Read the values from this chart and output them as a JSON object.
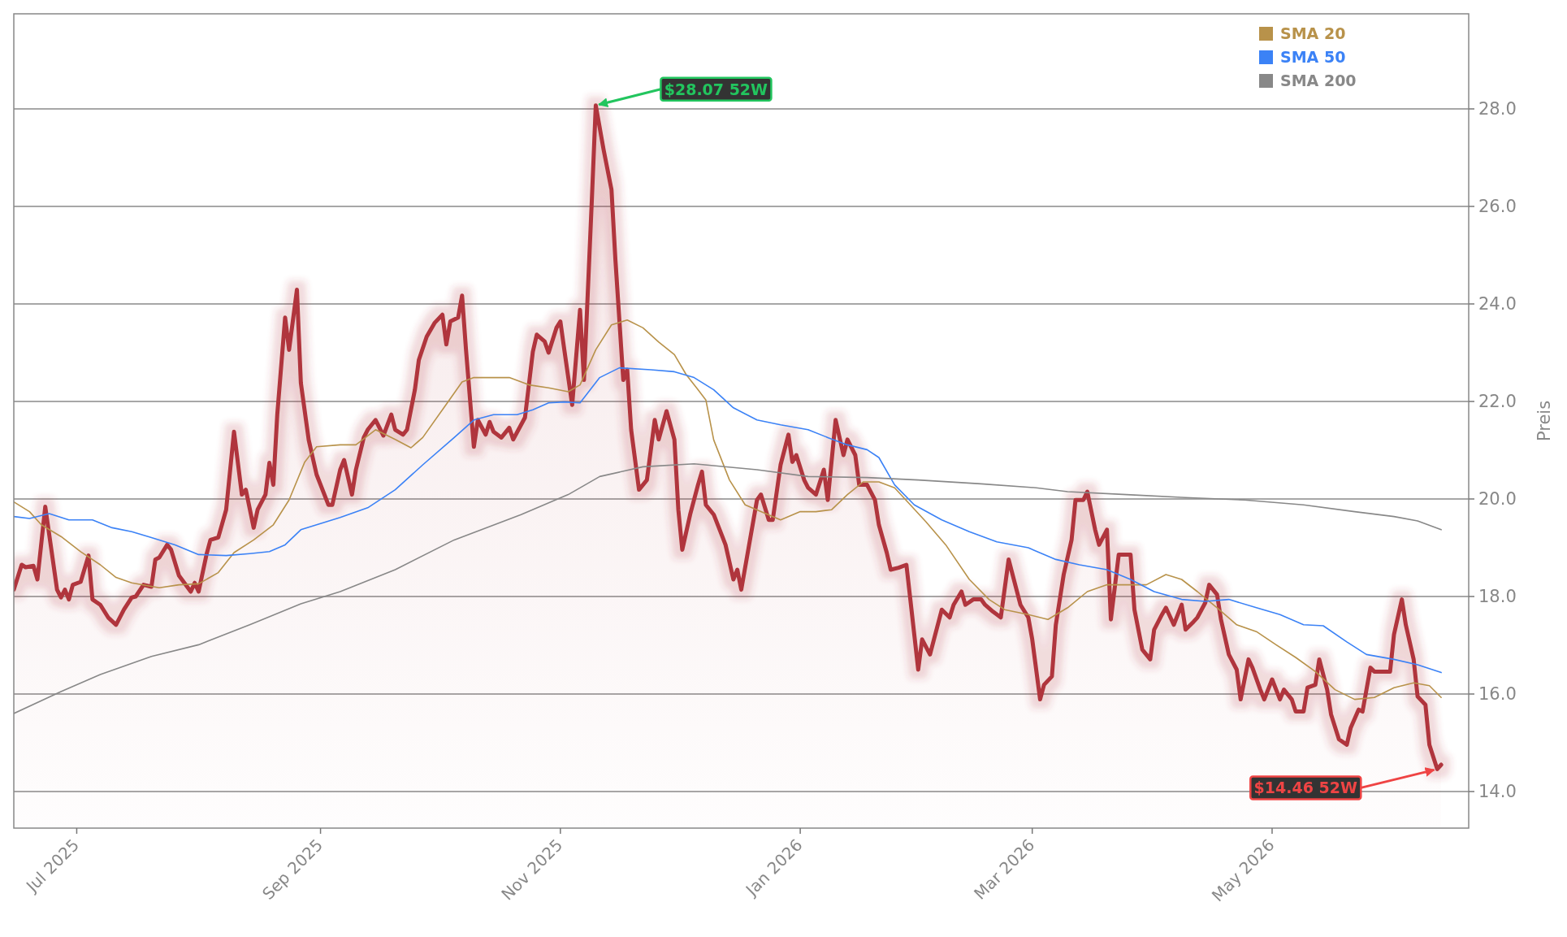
{
  "chart_data": {
    "type": "line",
    "ylabel": "Preis",
    "xlim": [
      "2025-06-15",
      "2026-06-20"
    ],
    "ylim": [
      13.25,
      29.95
    ],
    "xticks": [
      {
        "value": "2025-07-01",
        "label": "Jul 2025"
      },
      {
        "value": "2025-09-01",
        "label": "Sep 2025"
      },
      {
        "value": "2025-11-01",
        "label": "Nov 2025"
      },
      {
        "value": "2026-01-01",
        "label": "Jan 2026"
      },
      {
        "value": "2026-03-01",
        "label": "Mar 2026"
      },
      {
        "value": "2026-05-01",
        "label": "May 2026"
      }
    ],
    "yticks": [
      {
        "value": 14,
        "label": "14.0"
      },
      {
        "value": 16,
        "label": "16.0"
      },
      {
        "value": 18,
        "label": "18.0"
      },
      {
        "value": 20,
        "label": "20.0"
      },
      {
        "value": 22,
        "label": "22.0"
      },
      {
        "value": 24,
        "label": "24.0"
      },
      {
        "value": 26,
        "label": "26.0"
      },
      {
        "value": 28,
        "label": "28.0"
      }
    ],
    "grid": "y",
    "legend": "top right",
    "annotations": [
      {
        "text": "$28.07 52W",
        "x": "2025-11-10",
        "y": 28.07
      },
      {
        "text": "$14.46 52W",
        "x": "2026-06-12",
        "y": 14.46
      }
    ],
    "series": [
      {
        "type": "area",
        "color": "#b0353d",
        "x": [
          "2025-06-15",
          "2025-06-17",
          "2025-06-18",
          "2025-06-20",
          "2025-06-21",
          "2025-06-23",
          "2025-06-26",
          "2025-06-27",
          "2025-06-28",
          "2025-06-29",
          "2025-06-30",
          "2025-07-02",
          "2025-07-04",
          "2025-07-05",
          "2025-07-07",
          "2025-07-09",
          "2025-07-11",
          "2025-07-13",
          "2025-07-15",
          "2025-07-16",
          "2025-07-18",
          "2025-07-20",
          "2025-07-21",
          "2025-07-22",
          "2025-07-24",
          "2025-07-25",
          "2025-07-27",
          "2025-07-30",
          "2025-07-31",
          "2025-08-01",
          "2025-08-03",
          "2025-08-04",
          "2025-08-06",
          "2025-08-08",
          "2025-08-10",
          "2025-08-12",
          "2025-08-13",
          "2025-08-15",
          "2025-08-16",
          "2025-08-18",
          "2025-08-19",
          "2025-08-20",
          "2025-08-21",
          "2025-08-23",
          "2025-08-24",
          "2025-08-26",
          "2025-08-27",
          "2025-08-29",
          "2025-08-31",
          "2025-09-03",
          "2025-09-04",
          "2025-09-06",
          "2025-09-07",
          "2025-09-09",
          "2025-09-10",
          "2025-09-12",
          "2025-09-13",
          "2025-09-15",
          "2025-09-17",
          "2025-09-19",
          "2025-09-20",
          "2025-09-22",
          "2025-09-23",
          "2025-09-25",
          "2025-09-26",
          "2025-09-28",
          "2025-09-30",
          "2025-10-02",
          "2025-10-03",
          "2025-10-04",
          "2025-10-06",
          "2025-10-07",
          "2025-10-08",
          "2025-10-10",
          "2025-10-11",
          "2025-10-13",
          "2025-10-14",
          "2025-10-15",
          "2025-10-17",
          "2025-10-19",
          "2025-10-20",
          "2025-10-22",
          "2025-10-23",
          "2025-10-25",
          "2025-10-26",
          "2025-10-28",
          "2025-10-29",
          "2025-10-31",
          "2025-11-01",
          "2025-11-02",
          "2025-11-04",
          "2025-11-06",
          "2025-11-07",
          "2025-11-09",
          "2025-11-10",
          "2025-11-12",
          "2025-11-14",
          "2025-11-15",
          "2025-11-17",
          "2025-11-18",
          "2025-11-19",
          "2025-11-21",
          "2025-11-23",
          "2025-11-25",
          "2025-11-26",
          "2025-11-28",
          "2025-11-30",
          "2025-12-01",
          "2025-12-02",
          "2025-12-04",
          "2025-12-06",
          "2025-12-07",
          "2025-12-08",
          "2025-12-10",
          "2025-12-12",
          "2025-12-13",
          "2025-12-15",
          "2025-12-16",
          "2025-12-17",
          "2025-12-19",
          "2025-12-21",
          "2025-12-22",
          "2025-12-24",
          "2025-12-25",
          "2025-12-27",
          "2025-12-29",
          "2025-12-30",
          "2025-12-31",
          "2026-01-02",
          "2026-01-03",
          "2026-01-05",
          "2026-01-07",
          "2026-01-08",
          "2026-01-10",
          "2026-01-12",
          "2026-01-13",
          "2026-01-15",
          "2026-01-16",
          "2026-01-18",
          "2026-01-20",
          "2026-01-21",
          "2026-01-23",
          "2026-01-24",
          "2026-01-26",
          "2026-01-28",
          "2026-01-29",
          "2026-01-31",
          "2026-02-01",
          "2026-02-03",
          "2026-02-04",
          "2026-02-06",
          "2026-02-08",
          "2026-02-09",
          "2026-02-11",
          "2026-02-12",
          "2026-02-14",
          "2026-02-16",
          "2026-02-17",
          "2026-02-19",
          "2026-02-21",
          "2026-02-23",
          "2026-02-25",
          "2026-02-26",
          "2026-02-28",
          "2026-03-01",
          "2026-03-03",
          "2026-03-04",
          "2026-03-06",
          "2026-03-07",
          "2026-03-09",
          "2026-03-11",
          "2026-03-12",
          "2026-03-14",
          "2026-03-15",
          "2026-03-17",
          "2026-03-18",
          "2026-03-20",
          "2026-03-21",
          "2026-03-23",
          "2026-03-24",
          "2026-03-26",
          "2026-03-27",
          "2026-03-29",
          "2026-03-31",
          "2026-04-01",
          "2026-04-03",
          "2026-04-04",
          "2026-04-06",
          "2026-04-08",
          "2026-04-09",
          "2026-04-11",
          "2026-04-12",
          "2026-04-14",
          "2026-04-15",
          "2026-04-17",
          "2026-04-18",
          "2026-04-20",
          "2026-04-22",
          "2026-04-23",
          "2026-04-25",
          "2026-04-26",
          "2026-04-28",
          "2026-04-29",
          "2026-05-01",
          "2026-05-03",
          "2026-05-04",
          "2026-05-06",
          "2026-05-07",
          "2026-05-09",
          "2026-05-10",
          "2026-05-12",
          "2026-05-13",
          "2026-05-15",
          "2026-05-16",
          "2026-05-18",
          "2026-05-20",
          "2026-05-21",
          "2026-05-23",
          "2026-05-24",
          "2026-05-26",
          "2026-05-27",
          "2026-05-29",
          "2026-05-31",
          "2026-06-01",
          "2026-06-03",
          "2026-06-04",
          "2026-06-06",
          "2026-06-07",
          "2026-06-09",
          "2026-06-10",
          "2026-06-12",
          "2026-06-13"
        ],
        "values": [
          18.14,
          18.65,
          18.6,
          18.63,
          18.35,
          19.84,
          18.14,
          17.98,
          18.14,
          17.94,
          18.24,
          18.3,
          18.84,
          17.94,
          17.83,
          17.57,
          17.42,
          17.73,
          17.98,
          18.0,
          18.24,
          18.2,
          18.76,
          18.8,
          19.06,
          18.96,
          18.43,
          18.1,
          18.28,
          18.1,
          18.86,
          19.16,
          19.21,
          19.78,
          21.38,
          20.09,
          20.19,
          19.41,
          19.78,
          20.09,
          20.74,
          20.29,
          21.73,
          23.72,
          23.06,
          24.29,
          22.38,
          21.21,
          20.5,
          19.88,
          19.88,
          20.6,
          20.8,
          20.09,
          20.6,
          21.26,
          21.42,
          21.62,
          21.3,
          21.73,
          21.42,
          21.32,
          21.42,
          22.24,
          22.85,
          23.33,
          23.61,
          23.78,
          23.17,
          23.64,
          23.72,
          24.17,
          23.06,
          21.07,
          21.62,
          21.32,
          21.58,
          21.38,
          21.26,
          21.46,
          21.22,
          21.52,
          21.67,
          23.02,
          23.37,
          23.23,
          23.0,
          23.51,
          23.64,
          23.06,
          21.93,
          23.88,
          22.44,
          26.13,
          28.07,
          27.16,
          26.34,
          24.9,
          22.44,
          22.65,
          21.42,
          20.19,
          20.39,
          21.62,
          21.22,
          21.8,
          21.22,
          19.78,
          18.96,
          19.68,
          20.29,
          20.56,
          19.88,
          19.68,
          19.27,
          19.06,
          18.35,
          18.55,
          18.14,
          19.06,
          19.98,
          20.09,
          19.57,
          19.57,
          20.7,
          21.32,
          20.76,
          20.9,
          20.39,
          20.23,
          20.09,
          20.6,
          19.98,
          21.62,
          20.9,
          21.22,
          20.9,
          20.29,
          20.29,
          19.98,
          19.47,
          18.9,
          18.55,
          18.59,
          18.65,
          17.94,
          16.5,
          17.12,
          16.81,
          17.12,
          17.73,
          17.57,
          17.83,
          18.1,
          17.83,
          17.94,
          17.94,
          17.83,
          17.69,
          17.57,
          18.76,
          18.14,
          17.83,
          17.57,
          17.12,
          15.89,
          16.19,
          16.36,
          17.42,
          18.45,
          19.16,
          19.98,
          19.98,
          20.15,
          19.37,
          19.06,
          19.37,
          17.53,
          18.86,
          18.86,
          18.86,
          17.73,
          16.91,
          16.71,
          17.32,
          17.63,
          17.77,
          17.42,
          17.83,
          17.32,
          17.48,
          17.57,
          17.87,
          18.24,
          18.04,
          17.53,
          16.81,
          16.5,
          15.89,
          16.71,
          16.54,
          16.09,
          15.89,
          16.3,
          15.89,
          16.09,
          15.89,
          15.64,
          15.64,
          16.13,
          16.19,
          16.71,
          16.09,
          15.58,
          15.07,
          14.96,
          15.31,
          15.68,
          15.64,
          16.54,
          16.46,
          16.46,
          16.46,
          17.22,
          17.94,
          17.42,
          16.71,
          15.95,
          15.78,
          14.96,
          14.46,
          14.55
        ]
      },
      {
        "name": "SMA 20",
        "type": "line",
        "color": "#b8924a",
        "x": [
          "2025-06-15",
          "2025-06-19",
          "2025-06-22",
          "2025-06-27",
          "2025-07-02",
          "2025-07-07",
          "2025-07-11",
          "2025-07-15",
          "2025-07-22",
          "2025-07-27",
          "2025-08-01",
          "2025-08-06",
          "2025-08-10",
          "2025-08-15",
          "2025-08-20",
          "2025-08-24",
          "2025-08-28",
          "2025-08-31",
          "2025-09-06",
          "2025-09-10",
          "2025-09-15",
          "2025-09-20",
          "2025-09-24",
          "2025-09-27",
          "2025-10-02",
          "2025-10-07",
          "2025-10-10",
          "2025-10-15",
          "2025-10-19",
          "2025-10-24",
          "2025-10-29",
          "2025-11-03",
          "2025-11-06",
          "2025-11-10",
          "2025-11-14",
          "2025-11-18",
          "2025-11-22",
          "2025-11-26",
          "2025-11-30",
          "2025-12-03",
          "2025-12-06",
          "2025-12-08",
          "2025-12-10",
          "2025-12-14",
          "2025-12-18",
          "2025-12-22",
          "2025-12-27",
          "2026-01-01",
          "2026-01-05",
          "2026-01-09",
          "2026-01-13",
          "2026-01-17",
          "2026-01-21",
          "2026-01-25",
          "2026-01-29",
          "2026-02-02",
          "2026-02-07",
          "2026-02-13",
          "2026-02-18",
          "2026-02-22",
          "2026-02-28",
          "2026-03-05",
          "2026-03-10",
          "2026-03-15",
          "2026-03-20",
          "2026-03-25",
          "2026-03-30",
          "2026-04-04",
          "2026-04-08",
          "2026-04-12",
          "2026-04-17",
          "2026-04-22",
          "2026-04-27",
          "2026-05-02",
          "2026-05-07",
          "2026-05-12",
          "2026-05-17",
          "2026-05-22",
          "2026-05-27",
          "2026-06-01",
          "2026-06-06",
          "2026-06-10",
          "2026-06-13"
        ],
        "values": [
          19.94,
          19.74,
          19.47,
          19.23,
          18.92,
          18.65,
          18.39,
          18.28,
          18.18,
          18.24,
          18.26,
          18.49,
          18.9,
          19.16,
          19.47,
          19.98,
          20.76,
          21.07,
          21.11,
          21.11,
          21.42,
          21.22,
          21.05,
          21.26,
          21.83,
          22.4,
          22.49,
          22.49,
          22.49,
          22.34,
          22.28,
          22.2,
          22.34,
          23.06,
          23.57,
          23.67,
          23.51,
          23.22,
          22.96,
          22.55,
          22.24,
          22.03,
          21.21,
          20.39,
          19.88,
          19.74,
          19.57,
          19.74,
          19.74,
          19.78,
          20.09,
          20.35,
          20.35,
          20.23,
          19.88,
          19.53,
          19.06,
          18.35,
          17.94,
          17.73,
          17.63,
          17.53,
          17.77,
          18.1,
          18.24,
          18.24,
          18.24,
          18.45,
          18.35,
          18.1,
          17.77,
          17.42,
          17.28,
          17.01,
          16.75,
          16.46,
          16.09,
          15.89,
          15.93,
          16.13,
          16.23,
          16.17,
          15.93
        ]
      },
      {
        "name": "SMA 50",
        "type": "line",
        "color": "#3b82f6",
        "x": [
          "2025-06-15",
          "2025-06-19",
          "2025-06-24",
          "2025-06-29",
          "2025-07-05",
          "2025-07-10",
          "2025-07-15",
          "2025-07-20",
          "2025-07-26",
          "2025-08-01",
          "2025-08-08",
          "2025-08-14",
          "2025-08-19",
          "2025-08-23",
          "2025-08-27",
          "2025-08-31",
          "2025-09-06",
          "2025-09-13",
          "2025-09-20",
          "2025-09-27",
          "2025-10-05",
          "2025-10-10",
          "2025-10-15",
          "2025-10-21",
          "2025-10-25",
          "2025-10-29",
          "2025-11-02",
          "2025-11-06",
          "2025-11-11",
          "2025-11-16",
          "2025-11-24",
          "2025-11-30",
          "2025-12-05",
          "2025-12-10",
          "2025-12-15",
          "2025-12-21",
          "2025-12-27",
          "2026-01-03",
          "2026-01-08",
          "2026-01-13",
          "2026-01-18",
          "2026-01-21",
          "2026-01-25",
          "2026-01-30",
          "2026-02-06",
          "2026-02-13",
          "2026-02-20",
          "2026-02-28",
          "2026-03-07",
          "2026-03-13",
          "2026-03-20",
          "2026-03-26",
          "2026-04-01",
          "2026-04-08",
          "2026-04-14",
          "2026-04-20",
          "2026-04-27",
          "2026-05-03",
          "2026-05-09",
          "2026-05-14",
          "2026-05-20",
          "2026-05-25",
          "2026-06-01",
          "2026-06-07",
          "2026-06-13"
        ],
        "values": [
          19.64,
          19.6,
          19.7,
          19.57,
          19.57,
          19.41,
          19.33,
          19.21,
          19.06,
          18.86,
          18.84,
          18.88,
          18.92,
          19.06,
          19.37,
          19.47,
          19.62,
          19.82,
          20.19,
          20.7,
          21.26,
          21.62,
          21.73,
          21.73,
          21.83,
          21.97,
          21.99,
          21.97,
          22.49,
          22.69,
          22.65,
          22.61,
          22.49,
          22.24,
          21.87,
          21.62,
          21.52,
          21.42,
          21.26,
          21.11,
          21.01,
          20.85,
          20.29,
          19.88,
          19.57,
          19.33,
          19.12,
          19.0,
          18.76,
          18.65,
          18.55,
          18.35,
          18.1,
          17.94,
          17.9,
          17.94,
          17.77,
          17.63,
          17.42,
          17.4,
          17.07,
          16.81,
          16.71,
          16.6,
          16.44
        ]
      },
      {
        "name": "SMA 200",
        "type": "line",
        "color": "#888888",
        "x": [
          "2025-06-15",
          "2025-06-27",
          "2025-07-07",
          "2025-07-20",
          "2025-08-01",
          "2025-08-14",
          "2025-08-27",
          "2025-09-06",
          "2025-09-20",
          "2025-10-05",
          "2025-10-22",
          "2025-11-03",
          "2025-11-11",
          "2025-11-22",
          "2025-12-05",
          "2025-12-21",
          "2026-01-03",
          "2026-01-18",
          "2026-01-31",
          "2026-02-16",
          "2026-03-02",
          "2026-03-10",
          "2026-03-25",
          "2026-04-09",
          "2026-04-24",
          "2026-05-09",
          "2026-05-22",
          "2026-06-01",
          "2026-06-07",
          "2026-06-13"
        ],
        "values": [
          15.6,
          16.05,
          16.4,
          16.77,
          17.01,
          17.42,
          17.85,
          18.1,
          18.55,
          19.16,
          19.68,
          20.09,
          20.46,
          20.66,
          20.72,
          20.6,
          20.46,
          20.44,
          20.39,
          20.31,
          20.23,
          20.15,
          20.09,
          20.03,
          19.98,
          19.88,
          19.74,
          19.64,
          19.55,
          19.37
        ]
      }
    ]
  }
}
